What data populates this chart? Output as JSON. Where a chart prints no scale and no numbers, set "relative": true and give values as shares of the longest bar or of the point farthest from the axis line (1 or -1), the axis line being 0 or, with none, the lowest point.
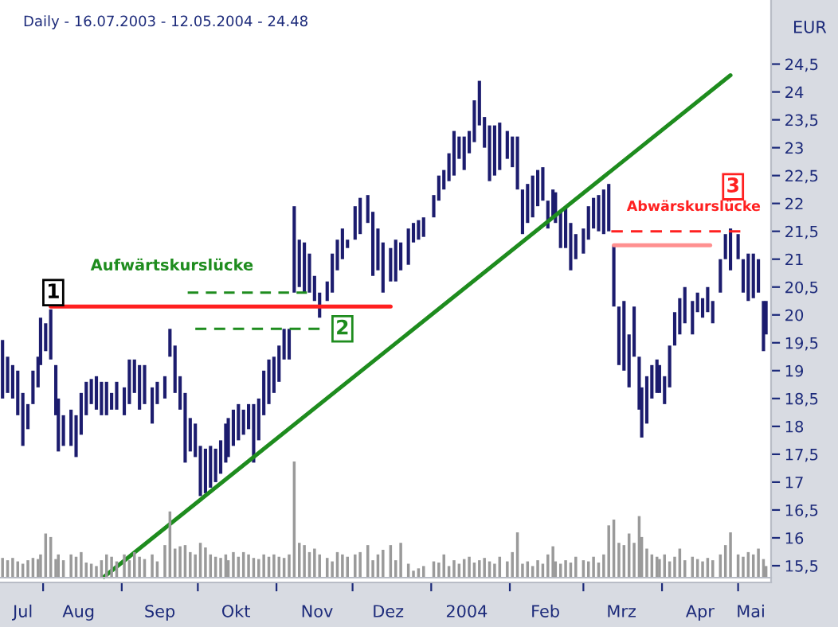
{
  "chart_data": [
    {
      "type": "bar",
      "title": "Daily - 16.07.2003 - 12.05.2004 - 24.48",
      "ylabel": "EUR",
      "color": "#1c1c6e",
      "x": [
        "2003-07-16",
        "2003-07-18",
        "2003-07-20",
        "2003-07-22",
        "2003-07-24",
        "2003-07-26",
        "2003-07-28",
        "2003-07-30",
        "2003-07-31",
        "2003-08-02",
        "2003-08-04",
        "2003-08-06",
        "2003-08-07",
        "2003-08-09",
        "2003-08-12",
        "2003-08-14",
        "2003-08-16",
        "2003-08-18",
        "2003-08-20",
        "2003-08-22",
        "2003-08-24",
        "2003-08-26",
        "2003-08-28",
        "2003-08-30",
        "2003-09-02",
        "2003-09-04",
        "2003-09-06",
        "2003-09-08",
        "2003-09-10",
        "2003-09-13",
        "2003-09-15",
        "2003-09-18",
        "2003-09-20",
        "2003-09-22",
        "2003-09-24",
        "2003-09-26",
        "2003-09-28",
        "2003-09-30",
        "2003-10-02",
        "2003-10-04",
        "2003-10-06",
        "2003-10-08",
        "2003-10-10",
        "2003-10-12",
        "2003-10-13",
        "2003-10-15",
        "2003-10-17",
        "2003-10-19",
        "2003-10-21",
        "2003-10-23",
        "2003-10-25",
        "2003-10-27",
        "2003-10-29",
        "2003-10-31",
        "2003-11-02",
        "2003-11-04",
        "2003-11-06",
        "2003-11-08",
        "2003-11-10",
        "2003-11-12",
        "2003-11-14",
        "2003-11-16",
        "2003-11-18",
        "2003-11-21",
        "2003-11-23",
        "2003-11-25",
        "2003-11-27",
        "2003-11-29",
        "2003-12-02",
        "2003-12-04",
        "2003-12-07",
        "2003-12-09",
        "2003-12-11",
        "2003-12-13",
        "2003-12-16",
        "2003-12-18",
        "2003-12-20",
        "2003-12-23",
        "2003-12-25",
        "2003-12-27",
        "2003-12-29",
        "2004-01-02",
        "2004-01-04",
        "2004-01-06",
        "2004-01-08",
        "2004-01-10",
        "2004-01-12",
        "2004-01-14",
        "2004-01-16",
        "2004-01-18",
        "2004-01-20",
        "2004-01-22",
        "2004-01-24",
        "2004-01-26",
        "2004-01-28",
        "2004-01-31",
        "2004-02-02",
        "2004-02-04",
        "2004-02-06",
        "2004-02-08",
        "2004-02-10",
        "2004-02-12",
        "2004-02-14",
        "2004-02-16",
        "2004-02-18",
        "2004-02-19",
        "2004-02-21",
        "2004-02-23",
        "2004-02-25",
        "2004-02-27",
        "2004-03-01",
        "2004-03-03",
        "2004-03-05",
        "2004-03-07",
        "2004-03-09",
        "2004-03-11",
        "2004-03-13",
        "2004-03-15",
        "2004-03-17",
        "2004-03-19",
        "2004-03-21",
        "2004-03-23",
        "2004-03-24",
        "2004-03-26",
        "2004-03-28",
        "2004-03-30",
        "2004-03-31",
        "2004-04-02",
        "2004-04-04",
        "2004-04-06",
        "2004-04-08",
        "2004-04-10",
        "2004-04-13",
        "2004-04-15",
        "2004-04-17",
        "2004-04-19",
        "2004-04-21",
        "2004-04-24",
        "2004-04-26",
        "2004-04-28",
        "2004-05-01",
        "2004-05-03",
        "2004-05-05",
        "2004-05-07",
        "2004-05-09",
        "2004-05-11",
        "2004-05-12"
      ],
      "base": [
        18.5,
        18.6,
        18.5,
        18.2,
        17.65,
        17.95,
        18.4,
        18.7,
        19.1,
        19.35,
        19.2,
        18.2,
        17.55,
        17.65,
        17.65,
        17.45,
        17.85,
        18.2,
        18.4,
        18.3,
        18.2,
        18.2,
        18.3,
        18.3,
        18.2,
        18.4,
        18.6,
        18.3,
        18.4,
        18.05,
        18.4,
        18.5,
        19.25,
        18.6,
        18.3,
        17.35,
        17.55,
        17.45,
        16.75,
        16.8,
        16.9,
        17.0,
        17.15,
        17.35,
        17.45,
        17.65,
        17.75,
        17.85,
        17.95,
        17.35,
        17.75,
        18.2,
        18.4,
        18.6,
        18.8,
        19.2,
        19.2,
        20.4,
        20.5,
        20.4,
        20.4,
        20.25,
        19.95,
        20.25,
        20.4,
        20.8,
        21.0,
        21.2,
        21.35,
        21.45,
        21.65,
        20.7,
        20.8,
        20.4,
        20.6,
        20.6,
        20.8,
        20.9,
        21.3,
        21.35,
        21.4,
        21.75,
        22.05,
        22.25,
        22.4,
        22.5,
        22.8,
        22.6,
        22.9,
        23.1,
        23.4,
        23.0,
        22.4,
        22.5,
        22.6,
        22.8,
        22.65,
        22.25,
        21.45,
        21.65,
        21.75,
        21.95,
        22.05,
        21.55,
        21.75,
        21.65,
        21.2,
        21.2,
        20.8,
        21.0,
        21.1,
        21.35,
        21.55,
        21.5,
        21.45,
        21.5,
        20.15,
        19.1,
        19.0,
        18.7,
        19.25,
        18.3,
        17.8,
        18.05,
        18.5,
        18.6,
        18.6,
        18.4,
        18.7,
        19.45,
        19.65,
        19.85,
        19.65,
        20.05,
        19.95,
        20.05,
        19.85,
        20.4,
        21.0,
        20.8,
        21.0,
        20.4,
        20.25,
        20.3,
        20.4,
        19.35,
        19.65
      ],
      "values": [
        1.05,
        0.65,
        0.6,
        0.8,
        0.95,
        0.45,
        0.6,
        0.55,
        0.85,
        0.5,
        0.9,
        0.9,
        0.95,
        0.55,
        0.65,
        0.75,
        0.75,
        0.6,
        0.45,
        0.6,
        0.6,
        0.6,
        0.3,
        0.5,
        0.5,
        0.8,
        0.6,
        0.8,
        0.7,
        0.65,
        0.4,
        0.4,
        0.5,
        0.85,
        0.6,
        1.25,
        0.6,
        0.6,
        0.9,
        0.8,
        0.75,
        0.6,
        0.6,
        0.7,
        0.7,
        0.65,
        0.65,
        0.45,
        0.45,
        1.05,
        0.75,
        0.8,
        0.8,
        0.65,
        0.65,
        0.55,
        0.55,
        1.55,
        0.85,
        0.9,
        0.7,
        0.45,
        0.45,
        0.35,
        0.7,
        0.55,
        0.55,
        0.15,
        0.6,
        0.65,
        0.5,
        1.15,
        0.75,
        0.9,
        0.6,
        0.75,
        0.5,
        0.65,
        0.35,
        0.35,
        0.35,
        0.4,
        0.45,
        0.35,
        0.5,
        0.8,
        0.4,
        0.6,
        0.4,
        0.75,
        0.8,
        0.55,
        1.0,
        0.9,
        0.85,
        0.5,
        0.55,
        0.95,
        0.8,
        0.7,
        0.75,
        0.65,
        0.6,
        0.5,
        0.5,
        0.55,
        0.65,
        0.75,
        0.85,
        0.45,
        0.45,
        0.6,
        0.55,
        0.65,
        0.8,
        0.85,
        1.1,
        1.05,
        1.25,
        0.95,
        0.9,
        0.95,
        0.9,
        0.85,
        0.6,
        0.6,
        0.5,
        0.5,
        0.75,
        0.6,
        0.65,
        0.65,
        0.6,
        0.35,
        0.35,
        0.45,
        0.4,
        0.6,
        0.45,
        0.75,
        0.45,
        0.6,
        0.85,
        0.8,
        0.6,
        0.9,
        0.6
      ],
      "series": [
        {
          "type": "line",
          "x": [
            "2003-08-25",
            "2004-04-28"
          ],
          "values": [
            15.3,
            24.3
          ],
          "color": "#1e8c1e",
          "line_style": "solid"
        },
        {
          "type": "line",
          "x": [
            "2003-08-04",
            "2003-12-16"
          ],
          "values": [
            20.15,
            20.15
          ],
          "color": "#ff2020",
          "line_style": "solid"
        },
        {
          "type": "line",
          "x": [
            "2003-09-27",
            "2003-11-13"
          ],
          "values": [
            20.4,
            20.4
          ],
          "color": "#1e8c1e",
          "line_style": "dashed"
        },
        {
          "type": "line",
          "x": [
            "2003-09-30",
            "2003-11-18"
          ],
          "values": [
            19.75,
            19.75
          ],
          "color": "#1e8c1e",
          "line_style": "dashed"
        },
        {
          "type": "line",
          "x": [
            "2004-03-12",
            "2004-05-02"
          ],
          "values": [
            21.5,
            21.5
          ],
          "color": "#ff2020",
          "line_style": "dashed"
        },
        {
          "type": "line",
          "x": [
            "2004-03-13",
            "2004-04-20"
          ],
          "values": [
            21.25,
            21.25
          ],
          "color": "#ff9090",
          "line_style": "solid"
        }
      ],
      "annotations": [
        {
          "text": "Aufwärtskurslücke",
          "x": "2003-10-10",
          "y": 20.4
        },
        {
          "text": "1",
          "x": "2003-08-05",
          "y": 20.4
        },
        {
          "text": "2",
          "x": "2003-11-27",
          "y": 19.75
        },
        {
          "text": "Abwärskurslücke",
          "x": "2004-04-10",
          "y": 21.5
        },
        {
          "text": "3",
          "x": "2004-04-29",
          "y": 22.3
        }
      ],
      "xlim": [
        "2003-07-15",
        "2004-05-14"
      ],
      "xticks": [
        {
          "value": "2003-07-24",
          "label": "Jul"
        },
        {
          "value": "2003-08-01",
          "label": null
        },
        {
          "value": "2003-08-15",
          "label": "Aug"
        },
        {
          "value": "2003-09-01",
          "label": null
        },
        {
          "value": "2003-09-16",
          "label": "Sep"
        },
        {
          "value": "2003-10-01",
          "label": null
        },
        {
          "value": "2003-10-16",
          "label": "Okt"
        },
        {
          "value": "2003-11-01",
          "label": null
        },
        {
          "value": "2003-11-17",
          "label": "Nov"
        },
        {
          "value": "2003-12-01",
          "label": null
        },
        {
          "value": "2003-12-15",
          "label": "Dez"
        },
        {
          "value": "2004-01-01",
          "label": null
        },
        {
          "value": "2004-01-15",
          "label": "2004"
        },
        {
          "value": "2004-02-01",
          "label": null
        },
        {
          "value": "2004-02-15",
          "label": "Feb"
        },
        {
          "value": "2004-03-01",
          "label": null
        },
        {
          "value": "2004-03-16",
          "label": "Mrz"
        },
        {
          "value": "2004-04-01",
          "label": null
        },
        {
          "value": "2004-04-16",
          "label": "Apr"
        },
        {
          "value": "2004-05-01",
          "label": null
        },
        {
          "value": "2004-05-06",
          "label": "Mai"
        }
      ],
      "ylim": [
        15.2,
        25.65
      ],
      "yticks": [
        {
          "value": 15.5,
          "label": "15,5"
        },
        {
          "value": 16,
          "label": "16"
        },
        {
          "value": 16.5,
          "label": "16,5"
        },
        {
          "value": 17,
          "label": "17"
        },
        {
          "value": 17.5,
          "label": "17,5"
        },
        {
          "value": 18,
          "label": "18"
        },
        {
          "value": 18.5,
          "label": "18,5"
        },
        {
          "value": 19,
          "label": "19"
        },
        {
          "value": 19.5,
          "label": "19,5"
        },
        {
          "value": 20,
          "label": "20"
        },
        {
          "value": 20.5,
          "label": "20,5"
        },
        {
          "value": 21,
          "label": "21"
        },
        {
          "value": 21.5,
          "label": "21,5"
        },
        {
          "value": 22,
          "label": "22"
        },
        {
          "value": 22.5,
          "label": "22,5"
        },
        {
          "value": 23,
          "label": "23"
        },
        {
          "value": 23.5,
          "label": "23,5"
        },
        {
          "value": 24,
          "label": "24"
        },
        {
          "value": 24.5,
          "label": "24,5"
        }
      ],
      "grid": false,
      "legend": false
    },
    {
      "type": "bar",
      "relative": true,
      "tick_labels": false,
      "color": "#9a9a9a",
      "xlim": [
        "2003-07-15",
        "2004-05-14"
      ],
      "x": [
        "2003-07-16",
        "2003-07-18",
        "2003-07-20",
        "2003-07-22",
        "2003-07-24",
        "2003-07-26",
        "2003-07-28",
        "2003-07-30",
        "2003-07-31",
        "2003-08-02",
        "2003-08-04",
        "2003-08-06",
        "2003-08-07",
        "2003-08-09",
        "2003-08-12",
        "2003-08-14",
        "2003-08-16",
        "2003-08-18",
        "2003-08-20",
        "2003-08-22",
        "2003-08-24",
        "2003-08-26",
        "2003-08-28",
        "2003-08-30",
        "2003-09-02",
        "2003-09-04",
        "2003-09-06",
        "2003-09-08",
        "2003-09-10",
        "2003-09-13",
        "2003-09-15",
        "2003-09-18",
        "2003-09-20",
        "2003-09-22",
        "2003-09-24",
        "2003-09-26",
        "2003-09-28",
        "2003-09-30",
        "2003-10-02",
        "2003-10-04",
        "2003-10-06",
        "2003-10-08",
        "2003-10-10",
        "2003-10-12",
        "2003-10-13",
        "2003-10-15",
        "2003-10-17",
        "2003-10-19",
        "2003-10-21",
        "2003-10-23",
        "2003-10-25",
        "2003-10-27",
        "2003-10-29",
        "2003-10-31",
        "2003-11-02",
        "2003-11-04",
        "2003-11-06",
        "2003-11-08",
        "2003-11-10",
        "2003-11-12",
        "2003-11-14",
        "2003-11-16",
        "2003-11-18",
        "2003-11-21",
        "2003-11-23",
        "2003-11-25",
        "2003-11-27",
        "2003-11-29",
        "2003-12-02",
        "2003-12-04",
        "2003-12-07",
        "2003-12-09",
        "2003-12-11",
        "2003-12-13",
        "2003-12-16",
        "2003-12-18",
        "2003-12-20",
        "2003-12-23",
        "2003-12-25",
        "2003-12-27",
        "2003-12-29",
        "2004-01-02",
        "2004-01-04",
        "2004-01-06",
        "2004-01-08",
        "2004-01-10",
        "2004-01-12",
        "2004-01-14",
        "2004-01-16",
        "2004-01-18",
        "2004-01-20",
        "2004-01-22",
        "2004-01-24",
        "2004-01-26",
        "2004-01-28",
        "2004-01-31",
        "2004-02-02",
        "2004-02-04",
        "2004-02-06",
        "2004-02-08",
        "2004-02-10",
        "2004-02-12",
        "2004-02-14",
        "2004-02-16",
        "2004-02-18",
        "2004-02-19",
        "2004-02-21",
        "2004-02-23",
        "2004-02-25",
        "2004-02-27",
        "2004-03-01",
        "2004-03-03",
        "2004-03-05",
        "2004-03-07",
        "2004-03-09",
        "2004-03-11",
        "2004-03-13",
        "2004-03-15",
        "2004-03-17",
        "2004-03-19",
        "2004-03-21",
        "2004-03-23",
        "2004-03-24",
        "2004-03-26",
        "2004-03-28",
        "2004-03-30",
        "2004-03-31",
        "2004-04-02",
        "2004-04-04",
        "2004-04-06",
        "2004-04-08",
        "2004-04-10",
        "2004-04-13",
        "2004-04-15",
        "2004-04-17",
        "2004-04-19",
        "2004-04-21",
        "2004-04-24",
        "2004-04-26",
        "2004-04-28",
        "2004-05-01",
        "2004-05-03",
        "2004-05-05",
        "2004-05-07",
        "2004-05-09",
        "2004-05-11",
        "2004-05-12"
      ],
      "values": [
        0.17,
        0.15,
        0.17,
        0.14,
        0.12,
        0.15,
        0.17,
        0.16,
        0.2,
        0.38,
        0.35,
        0.16,
        0.2,
        0.15,
        0.2,
        0.18,
        0.22,
        0.13,
        0.12,
        0.1,
        0.15,
        0.2,
        0.18,
        0.14,
        0.2,
        0.15,
        0.22,
        0.18,
        0.16,
        0.2,
        0.14,
        0.28,
        0.57,
        0.25,
        0.27,
        0.28,
        0.22,
        0.2,
        0.3,
        0.26,
        0.2,
        0.18,
        0.17,
        0.2,
        0.15,
        0.22,
        0.18,
        0.22,
        0.2,
        0.17,
        0.16,
        0.2,
        0.18,
        0.2,
        0.18,
        0.17,
        0.2,
        1.0,
        0.3,
        0.28,
        0.22,
        0.25,
        0.2,
        0.17,
        0.14,
        0.22,
        0.2,
        0.18,
        0.2,
        0.22,
        0.28,
        0.15,
        0.2,
        0.24,
        0.28,
        0.15,
        0.3,
        0.12,
        0.06,
        0.08,
        0.1,
        0.14,
        0.13,
        0.2,
        0.1,
        0.15,
        0.12,
        0.16,
        0.18,
        0.13,
        0.15,
        0.17,
        0.14,
        0.12,
        0.18,
        0.14,
        0.22,
        0.39,
        0.12,
        0.14,
        0.1,
        0.15,
        0.12,
        0.2,
        0.27,
        0.14,
        0.12,
        0.15,
        0.13,
        0.18,
        0.15,
        0.14,
        0.18,
        0.13,
        0.2,
        0.45,
        0.5,
        0.3,
        0.28,
        0.38,
        0.3,
        0.53,
        0.35,
        0.25,
        0.2,
        0.18,
        0.16,
        0.2,
        0.14,
        0.18,
        0.25,
        0.15,
        0.18,
        0.16,
        0.14,
        0.17,
        0.15,
        0.2,
        0.28,
        0.39,
        0.2,
        0.18,
        0.22,
        0.2,
        0.25,
        0.16,
        0.1
      ]
    }
  ]
}
